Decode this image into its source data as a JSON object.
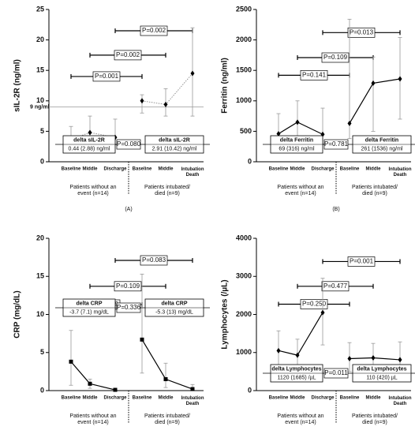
{
  "chart_data": [
    {
      "type": "line",
      "marker": "diamond",
      "line_style": "dotted",
      "ylabel": "sIL-2R (ng/ml)",
      "ylim": [
        0,
        25
      ],
      "yticks": [
        0,
        5,
        10,
        15,
        20,
        25
      ],
      "panel_label": "(A)",
      "groups": [
        {
          "label": "Patients without an event (n=14)",
          "categories": [
            "Baseline",
            "Middle",
            "Discharge"
          ],
          "values": [
            3.7,
            4.8,
            4.0
          ],
          "error_low": [
            2.5,
            3.0,
            2.8
          ],
          "error_high": [
            5.8,
            7.5,
            7.0
          ]
        },
        {
          "label": "Patients intubated/ died (n=9)",
          "categories": [
            "Baseline",
            "Middle",
            "Intubation Death"
          ],
          "values": [
            10.0,
            9.4,
            14.5
          ],
          "error_low": [
            8.0,
            7.5,
            7.5
          ],
          "error_high": [
            11.0,
            12.0,
            22.0
          ]
        }
      ],
      "reference": {
        "value": 9,
        "label": "9 ng/ml"
      },
      "comparisons": [
        {
          "label": "P=0.001",
          "y": 14
        },
        {
          "label": "P=0.002",
          "y": 17.5
        },
        {
          "label": "P=0.002",
          "y": 21.5
        }
      ],
      "deltas": [
        {
          "title": "delta sIL-2R",
          "text": "0.44 (2.88) ng/ml"
        },
        {
          "title": "delta sIL-2R",
          "text": "2.91 (10.42) ng/ml"
        }
      ],
      "delta_p": "P=0.080"
    },
    {
      "type": "line",
      "marker": "diamond",
      "line_style": "solid",
      "ylabel": "Ferritin (ng/ml)",
      "ylim": [
        0,
        2500
      ],
      "yticks": [
        0,
        500,
        1000,
        1500,
        2000,
        2500
      ],
      "panel_label": "(B)",
      "groups": [
        {
          "label": "Patients without an event (n=14)",
          "categories": [
            "Baseline",
            "Middle",
            "Discharge"
          ],
          "values": [
            460,
            650,
            450
          ],
          "error_low": [
            260,
            290,
            290
          ],
          "error_high": [
            790,
            1000,
            880
          ]
        },
        {
          "label": "Patients intubated/ died (n=9)",
          "categories": [
            "Baseline",
            "Middle",
            "Intubation Death"
          ],
          "values": [
            630,
            1290,
            1360
          ],
          "error_low": [
            380,
            500,
            700
          ],
          "error_high": [
            2340,
            1720,
            2040
          ]
        }
      ],
      "comparisons": [
        {
          "label": "P=0.141",
          "y": 1420
        },
        {
          "label": "P=0.109",
          "y": 1710
        },
        {
          "label": "P=0.013",
          "y": 2120
        }
      ],
      "deltas": [
        {
          "title": "delta Ferritin",
          "text": "69 (316) ng/ml"
        },
        {
          "title": "delta Ferritin",
          "text": "261 (1536) ng/ml"
        }
      ],
      "delta_p": "P=0.781"
    },
    {
      "type": "line",
      "marker": "square",
      "line_style": "solid",
      "ylabel": "CRP (mg/dL)",
      "ylim": [
        0,
        20
      ],
      "yticks": [
        0,
        5,
        10,
        15,
        20
      ],
      "panel_label": "(C)",
      "groups": [
        {
          "label": "Patients without an event (n=14)",
          "categories": [
            "Baseline",
            "Middle",
            "Discharge"
          ],
          "values": [
            3.8,
            0.9,
            0.1
          ],
          "error_low": [
            0.7,
            0.3,
            0
          ],
          "error_high": [
            7.9,
            1.5,
            0.3
          ]
        },
        {
          "label": "Patients intubated/ died (n=9)",
          "categories": [
            "Baseline",
            "Middle",
            "Intubation Death"
          ],
          "values": [
            6.7,
            1.5,
            0.2
          ],
          "error_low": [
            2.3,
            0.4,
            0
          ],
          "error_high": [
            15.3,
            3.6,
            0.8
          ]
        }
      ],
      "comparisons": [
        {
          "label": "P=0.159",
          "y": 11.3
        },
        {
          "label": "P=0.109",
          "y": 13.7
        },
        {
          "label": "P=0.083",
          "y": 17.1
        }
      ],
      "deltas": [
        {
          "title": "delta CRP",
          "text": "-3.7 (7.1) mg/dL"
        },
        {
          "title": "delta CRP",
          "text": "-5.3 (13) mg/dL"
        }
      ],
      "delta_p": "P=0.336"
    },
    {
      "type": "line",
      "marker": "diamond",
      "line_style": "solid",
      "ylabel": "Lymphocytes (/µL)",
      "ylim": [
        0,
        4000
      ],
      "yticks": [
        0,
        1000,
        2000,
        3000,
        4000
      ],
      "panel_label": "(D)",
      "groups": [
        {
          "label": "Patients without an event (n=14)",
          "categories": [
            "Baseline",
            "Middle",
            "Discharge"
          ],
          "values": [
            1050,
            930,
            2050
          ],
          "error_low": [
            530,
            400,
            1200
          ],
          "error_high": [
            1570,
            1350,
            2950
          ]
        },
        {
          "label": "Patients intubated/ died (n=9)",
          "categories": [
            "Baseline",
            "Middle",
            "Intubation Death"
          ],
          "values": [
            840,
            860,
            810
          ],
          "error_low": [
            500,
            520,
            400
          ],
          "error_high": [
            1260,
            1240,
            1280
          ]
        }
      ],
      "comparisons": [
        {
          "label": "P=0.250",
          "y": 2270
        },
        {
          "label": "P=0.477",
          "y": 2740
        },
        {
          "label": "P=0.001",
          "y": 3390
        }
      ],
      "deltas": [
        {
          "title": "delta Lymphocytes",
          "text": "1120 (1685) /µL"
        },
        {
          "title": "delta Lymphocytes",
          "text": "110 (420) µL"
        }
      ],
      "delta_p": "P=0.011"
    }
  ]
}
